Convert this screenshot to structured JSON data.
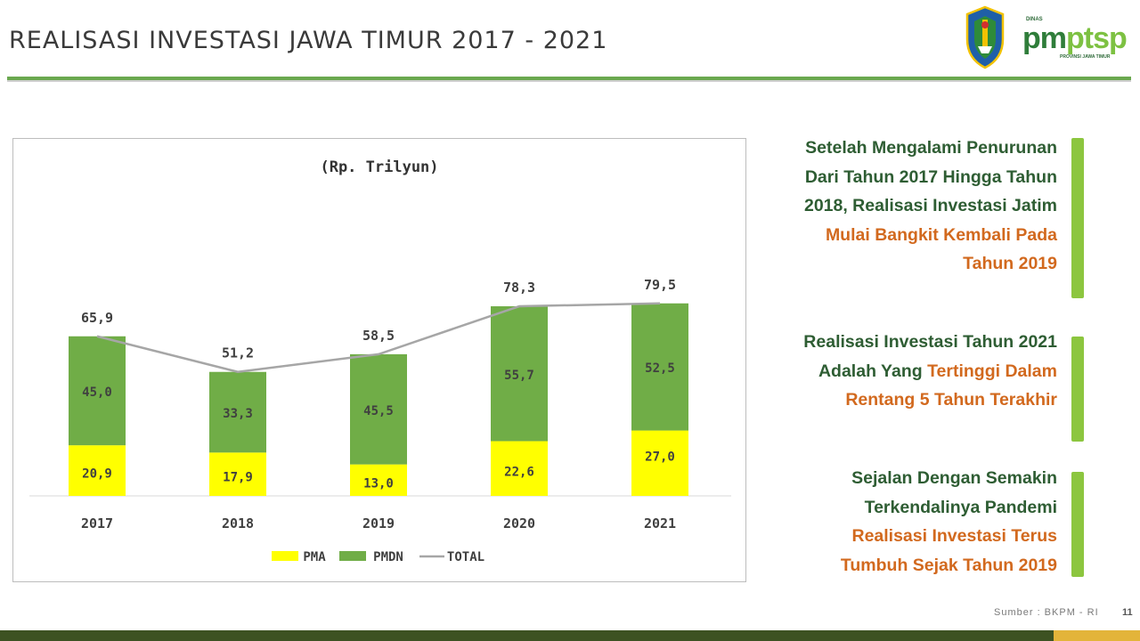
{
  "header": {
    "title": "REALISASI INVESTASI JAWA TIMUR 2017 - 2021"
  },
  "logo": {
    "dinas": "DINAS",
    "brand_a": "pm",
    "brand_b": "ptsp",
    "sub": "PROVINSI JAWA TIMUR"
  },
  "chart_data": {
    "type": "bar",
    "stacked": true,
    "title": "(Rp. Trilyun)",
    "categories": [
      "2017",
      "2018",
      "2019",
      "2020",
      "2021"
    ],
    "series": [
      {
        "name": "PMA",
        "values": [
          20.9,
          17.9,
          13.0,
          22.6,
          27.0
        ],
        "labels": [
          "20,9",
          "17,9",
          "13,0",
          "22,6",
          "27,0"
        ],
        "color": "#ffff00"
      },
      {
        "name": "PMDN",
        "values": [
          45.0,
          33.3,
          45.5,
          55.7,
          52.5
        ],
        "labels": [
          "45,0",
          "33,3",
          "45,5",
          "55,7",
          "52,5"
        ],
        "color": "#70ad47"
      },
      {
        "name": "TOTAL",
        "type": "line",
        "values": [
          65.9,
          51.2,
          58.5,
          78.3,
          79.5
        ],
        "labels": [
          "65,9",
          "51,2",
          "58,5",
          "78,3",
          "79,5"
        ],
        "color": "#a6a6a6"
      }
    ],
    "ylim": [
      0,
      100
    ],
    "legend": [
      "PMA",
      "PMDN",
      "TOTAL"
    ],
    "legend_position": "bottom"
  },
  "panels": [
    {
      "plain": "Setelah Mengalami Penurunan Dari Tahun 2017 Hingga Tahun 2018, Realisasi Investasi Jatim",
      "highlight": "Mulai Bangkit Kembali Pada Tahun 2019"
    },
    {
      "plain": "Realisasi Investasi Tahun 2021 Adalah Yang",
      "highlight": "Tertinggi Dalam Rentang 5 Tahun Terakhir"
    },
    {
      "plain": "Sejalan Dengan Semakin Terkendalinya Pandemi",
      "highlight": "Realisasi Investasi Terus Tumbuh Sejak Tahun 2019"
    }
  ],
  "footer": {
    "source": "Sumber : BKPM - RI",
    "page": "11"
  },
  "colors": {
    "accent": "#6aa84f",
    "text_dark_green": "#2e5d33",
    "highlight_orange": "#d2691e"
  }
}
